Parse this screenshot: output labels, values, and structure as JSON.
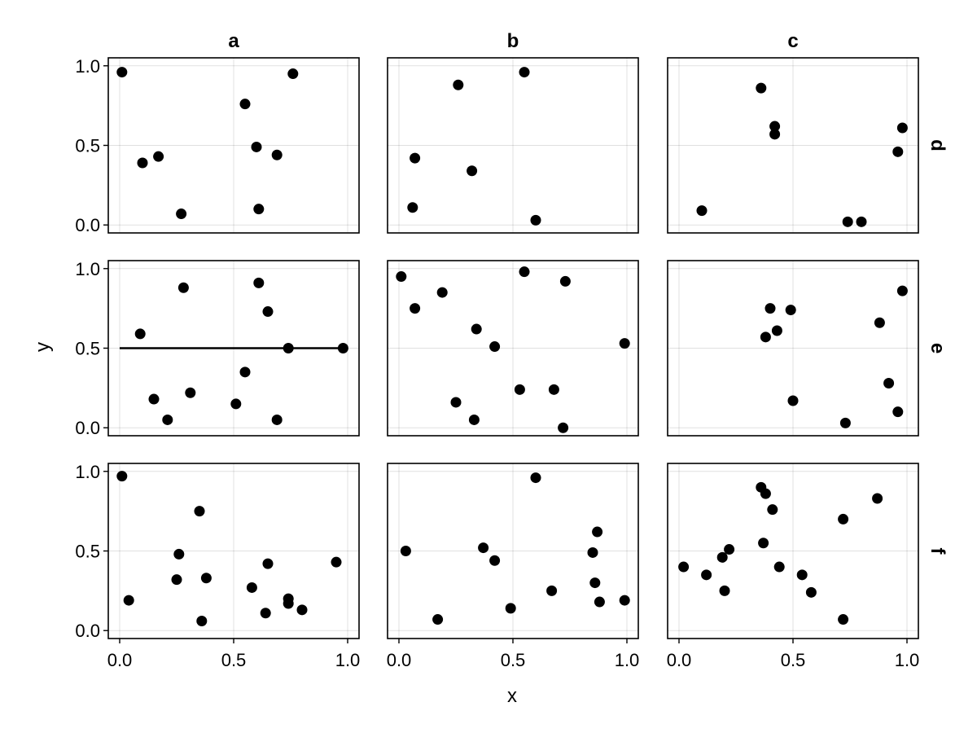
{
  "chart_data": {
    "type": "scatter",
    "xlabel": "x",
    "ylabel": "y",
    "xlim": [
      -0.05,
      1.05
    ],
    "ylim": [
      -0.05,
      1.05
    ],
    "ticks": [
      "0.0",
      "0.5",
      "1.0"
    ],
    "tick_values": [
      0,
      0.5,
      1
    ],
    "grid": true,
    "col_titles": [
      "a",
      "b",
      "c"
    ],
    "row_titles": [
      "d",
      "e",
      "f"
    ],
    "panels": [
      {
        "row": 0,
        "col": 0,
        "points": [
          [
            0.01,
            0.96
          ],
          [
            0.1,
            0.39
          ],
          [
            0.17,
            0.43
          ],
          [
            0.27,
            0.07
          ],
          [
            0.55,
            0.76
          ],
          [
            0.6,
            0.49
          ],
          [
            0.61,
            0.1
          ],
          [
            0.69,
            0.44
          ],
          [
            0.76,
            0.95
          ]
        ]
      },
      {
        "row": 0,
        "col": 1,
        "points": [
          [
            0.06,
            0.11
          ],
          [
            0.07,
            0.42
          ],
          [
            0.26,
            0.88
          ],
          [
            0.32,
            0.34
          ],
          [
            0.55,
            0.96
          ],
          [
            0.6,
            0.03
          ]
        ]
      },
      {
        "row": 0,
        "col": 2,
        "points": [
          [
            0.1,
            0.09
          ],
          [
            0.36,
            0.86
          ],
          [
            0.42,
            0.62
          ],
          [
            0.42,
            0.57
          ],
          [
            0.74,
            0.02
          ],
          [
            0.8,
            0.02
          ],
          [
            0.96,
            0.46
          ],
          [
            0.98,
            0.61
          ]
        ]
      },
      {
        "row": 1,
        "col": 0,
        "points": [
          [
            0.09,
            0.59
          ],
          [
            0.15,
            0.18
          ],
          [
            0.21,
            0.05
          ],
          [
            0.28,
            0.88
          ],
          [
            0.31,
            0.22
          ],
          [
            0.51,
            0.15
          ],
          [
            0.55,
            0.35
          ],
          [
            0.61,
            0.91
          ],
          [
            0.65,
            0.73
          ],
          [
            0.69,
            0.05
          ],
          [
            0.74,
            0.5
          ],
          [
            0.98,
            0.5
          ]
        ],
        "hline": {
          "y": 0.5,
          "x": [
            0,
            0.98
          ]
        }
      },
      {
        "row": 1,
        "col": 1,
        "points": [
          [
            0.01,
            0.95
          ],
          [
            0.07,
            0.75
          ],
          [
            0.19,
            0.85
          ],
          [
            0.25,
            0.16
          ],
          [
            0.33,
            0.05
          ],
          [
            0.34,
            0.62
          ],
          [
            0.42,
            0.51
          ],
          [
            0.53,
            0.24
          ],
          [
            0.55,
            0.98
          ],
          [
            0.68,
            0.24
          ],
          [
            0.72,
            0.0
          ],
          [
            0.73,
            0.92
          ],
          [
            0.99,
            0.53
          ]
        ]
      },
      {
        "row": 1,
        "col": 2,
        "points": [
          [
            0.38,
            0.57
          ],
          [
            0.4,
            0.75
          ],
          [
            0.43,
            0.61
          ],
          [
            0.49,
            0.74
          ],
          [
            0.5,
            0.17
          ],
          [
            0.73,
            0.03
          ],
          [
            0.88,
            0.66
          ],
          [
            0.92,
            0.28
          ],
          [
            0.96,
            0.1
          ],
          [
            0.98,
            0.86
          ]
        ]
      },
      {
        "row": 2,
        "col": 0,
        "points": [
          [
            0.01,
            0.97
          ],
          [
            0.04,
            0.19
          ],
          [
            0.25,
            0.32
          ],
          [
            0.26,
            0.48
          ],
          [
            0.35,
            0.75
          ],
          [
            0.36,
            0.06
          ],
          [
            0.38,
            0.33
          ],
          [
            0.58,
            0.27
          ],
          [
            0.64,
            0.11
          ],
          [
            0.65,
            0.42
          ],
          [
            0.74,
            0.2
          ],
          [
            0.74,
            0.17
          ],
          [
            0.8,
            0.13
          ],
          [
            0.95,
            0.43
          ]
        ]
      },
      {
        "row": 2,
        "col": 1,
        "points": [
          [
            0.03,
            0.5
          ],
          [
            0.17,
            0.07
          ],
          [
            0.37,
            0.52
          ],
          [
            0.42,
            0.44
          ],
          [
            0.49,
            0.14
          ],
          [
            0.6,
            0.96
          ],
          [
            0.67,
            0.25
          ],
          [
            0.85,
            0.49
          ],
          [
            0.86,
            0.3
          ],
          [
            0.87,
            0.62
          ],
          [
            0.88,
            0.18
          ],
          [
            0.99,
            0.19
          ]
        ]
      },
      {
        "row": 2,
        "col": 2,
        "points": [
          [
            0.02,
            0.4
          ],
          [
            0.12,
            0.35
          ],
          [
            0.19,
            0.46
          ],
          [
            0.2,
            0.25
          ],
          [
            0.22,
            0.51
          ],
          [
            0.36,
            0.9
          ],
          [
            0.37,
            0.55
          ],
          [
            0.38,
            0.86
          ],
          [
            0.41,
            0.76
          ],
          [
            0.44,
            0.4
          ],
          [
            0.54,
            0.35
          ],
          [
            0.58,
            0.24
          ],
          [
            0.72,
            0.7
          ],
          [
            0.72,
            0.07
          ],
          [
            0.87,
            0.83
          ]
        ]
      }
    ]
  }
}
